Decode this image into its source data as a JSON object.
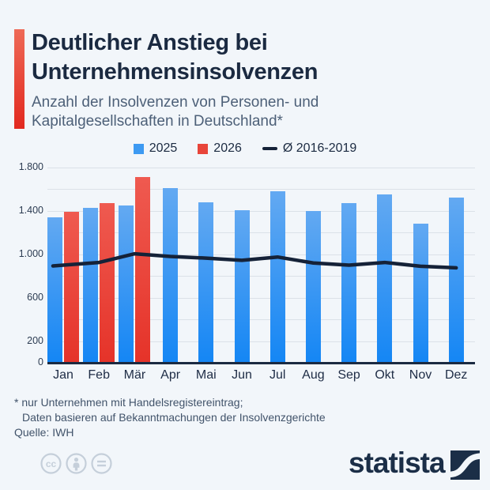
{
  "title": {
    "line1": "Deutlicher Anstieg bei",
    "line2": "Unternehmensinsolvenzen"
  },
  "subtitle": {
    "line1": "Anzahl der Insolvenzen von Personen- und",
    "line2": "Kapitalgesellschaften in Deutschland*"
  },
  "legend": {
    "items": [
      {
        "label": "2025",
        "type": "square",
        "color": "#3d9af2"
      },
      {
        "label": "2026",
        "type": "square",
        "color": "#e8453a"
      },
      {
        "label": "Ø 2016-2019",
        "type": "line",
        "color": "#152238"
      }
    ]
  },
  "chart_data": {
    "type": "bar",
    "title": "Deutlicher Anstieg bei Unternehmensinsolvenzen",
    "subtitle": "Anzahl der Insolvenzen von Personen- und Kapitalgesellschaften in Deutschland*",
    "categories": [
      "Jan",
      "Feb",
      "Mär",
      "Apr",
      "Mai",
      "Jun",
      "Jul",
      "Aug",
      "Sep",
      "Okt",
      "Nov",
      "Dez"
    ],
    "series": [
      {
        "name": "2025",
        "type": "bar",
        "color_top": "#63a9f2",
        "color_bottom": "#1486f4",
        "values": [
          1340,
          1430,
          1450,
          1610,
          1480,
          1410,
          1580,
          1400,
          1470,
          1550,
          1280,
          1520
        ]
      },
      {
        "name": "2026",
        "type": "bar",
        "color_top": "#ef5a50",
        "color_bottom": "#e53329",
        "values": [
          1390,
          1470,
          1710,
          null,
          null,
          null,
          null,
          null,
          null,
          null,
          null,
          null
        ]
      },
      {
        "name": "Ø 2016-2019",
        "type": "line",
        "color": "#152238",
        "values": [
          900,
          925,
          1005,
          980,
          965,
          945,
          975,
          920,
          900,
          925,
          890,
          875
        ]
      }
    ],
    "ylim": [
      0,
      1800
    ],
    "ytick_step": 200,
    "yticks_labeled": [
      0,
      200,
      600,
      1000,
      1400,
      1800
    ],
    "grid": true,
    "legend_position": "top"
  },
  "footnote": {
    "line1": "* nur Unternehmen mit Handelsregistereintrag;",
    "line2": "Daten basieren auf Bekanntmachungen der Insolvenzgerichte"
  },
  "source": "Quelle: IWH",
  "branding": {
    "logo_text": "statista",
    "license_icons": [
      "cc-license-icon",
      "attribution-icon",
      "equal-sign-icon"
    ]
  }
}
